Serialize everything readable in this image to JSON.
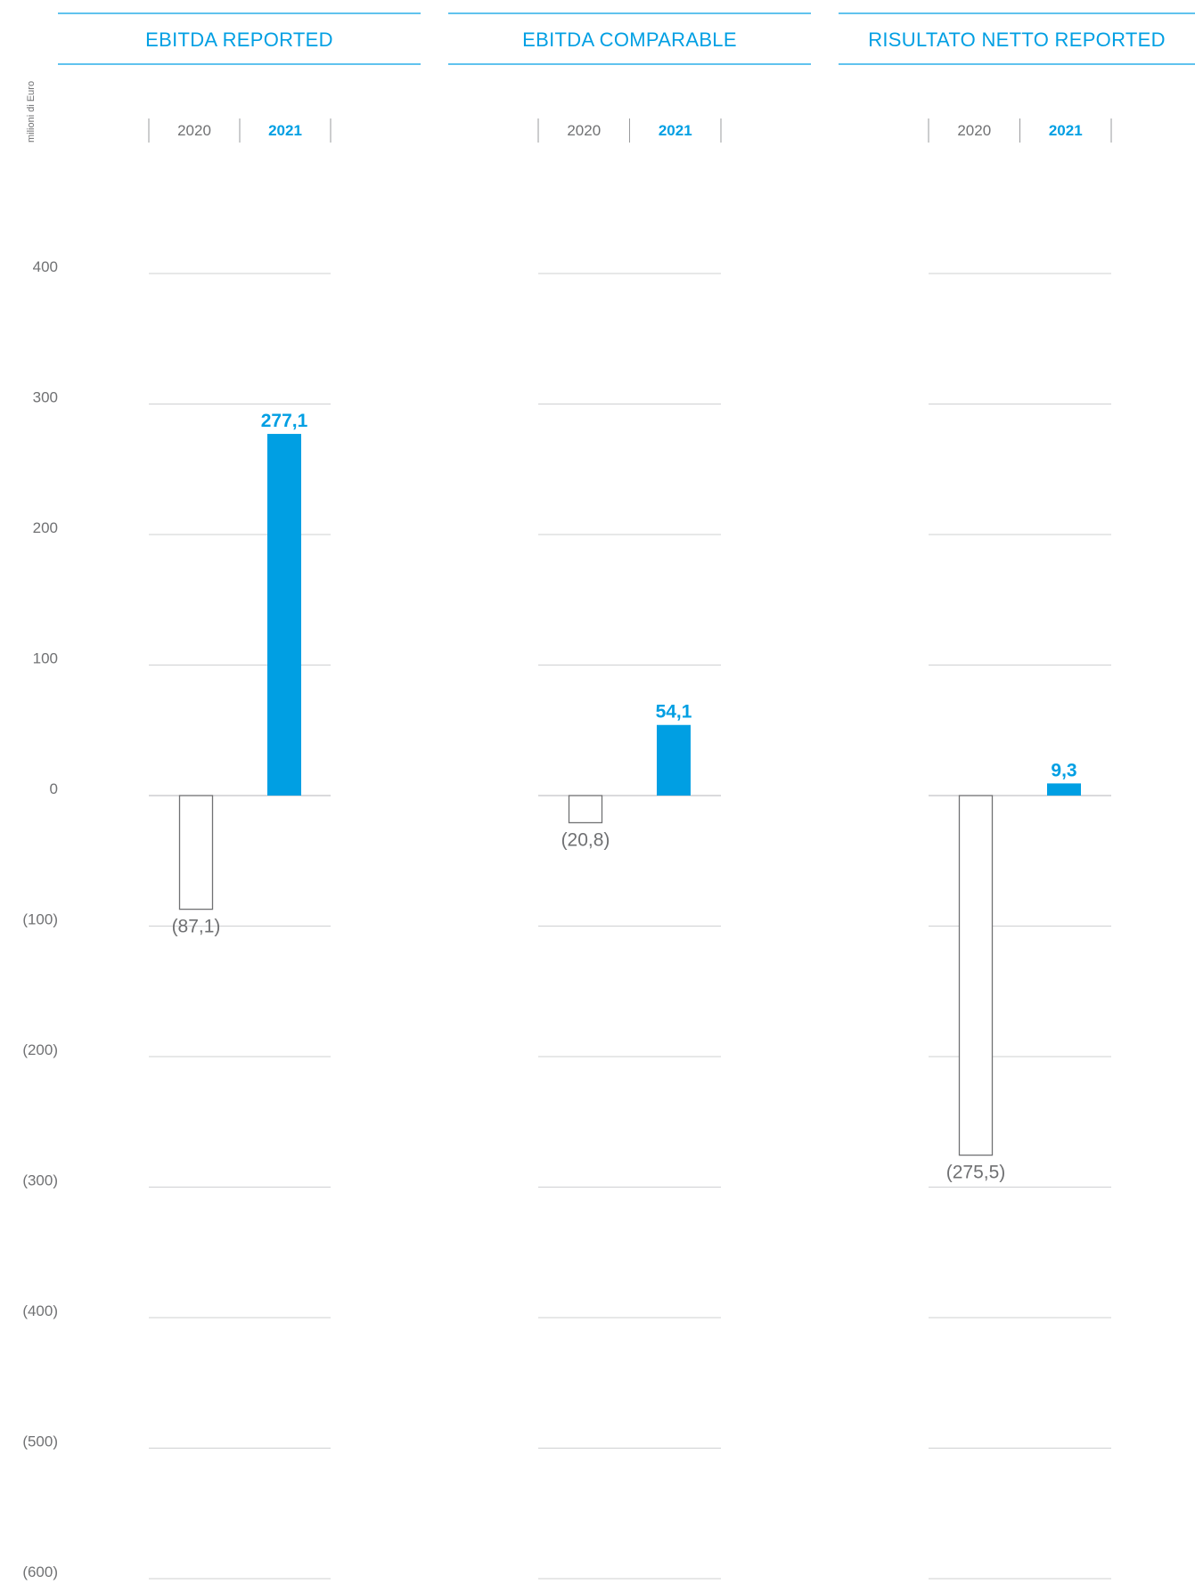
{
  "unit_label": "milioni di Euro",
  "colors": {
    "accent": "#009fe3",
    "previous_bar_stroke": "#707173",
    "text_grey": "#707173",
    "gridline": "#cfd0d2"
  },
  "chart_data": [
    {
      "type": "bar",
      "title": "EBITDA REPORTED",
      "categories": [
        "2020",
        "2021"
      ],
      "values": [
        -87.1,
        277.1
      ],
      "value_labels": [
        "(87,1)",
        "277,1"
      ],
      "ylabel": "milioni di Euro",
      "ylim": [
        -600,
        400
      ],
      "yticks": [
        400,
        300,
        200,
        100,
        0,
        -100,
        -200,
        -300,
        -400,
        -500,
        -600
      ],
      "ytick_labels": [
        "400",
        "300",
        "200",
        "100",
        "0",
        "(100)",
        "(200)",
        "(300)",
        "(400)",
        "(500)",
        "(600)"
      ],
      "grid": true
    },
    {
      "type": "bar",
      "title": "EBITDA COMPARABLE",
      "categories": [
        "2020",
        "2021"
      ],
      "values": [
        -20.8,
        54.1
      ],
      "value_labels": [
        "(20,8)",
        "54,1"
      ],
      "ylim": [
        -600,
        400
      ],
      "grid": true
    },
    {
      "type": "bar",
      "title": "RISULTATO NETTO REPORTED",
      "categories": [
        "2020",
        "2021"
      ],
      "values": [
        -275.5,
        9.3
      ],
      "value_labels": [
        "(275,5)",
        "9,3"
      ],
      "ylim": [
        -600,
        400
      ],
      "grid": true
    }
  ]
}
